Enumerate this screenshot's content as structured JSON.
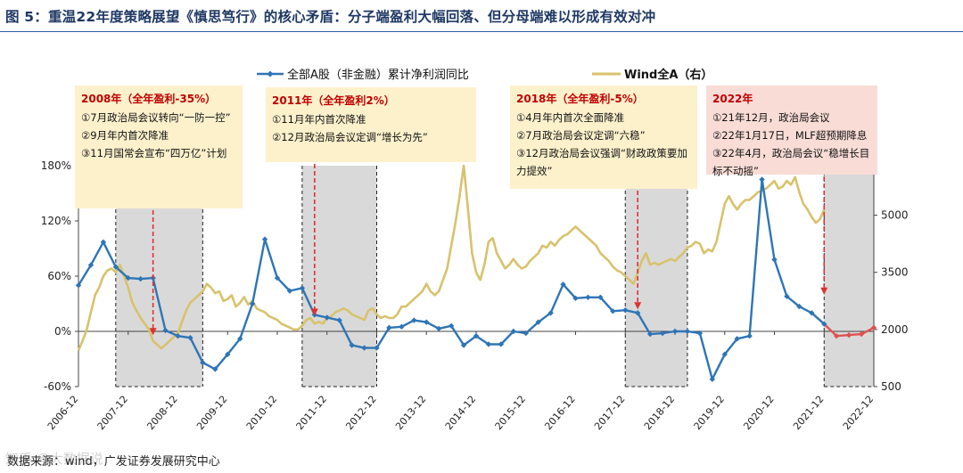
{
  "title": "图 5：重温22年度策略展望《慎思笃行》的核心矛盾：分子端盈利大幅回落、但分母端难以形成有效对冲",
  "source": "数据来源：wind，广发证券发展研究中心",
  "watermark": "知乎 @大数据说",
  "chart_data": {
    "type": "line",
    "legend_position": "top",
    "grid": false,
    "x_ticks": [
      "2006-12",
      "2007-12",
      "2008-12",
      "2009-12",
      "2010-12",
      "2011-12",
      "2012-12",
      "2013-12",
      "2014-12",
      "2015-12",
      "2016-12",
      "2017-12",
      "2018-12",
      "2019-12",
      "2020-12",
      "2021-12",
      "2022-12"
    ],
    "y_left": {
      "ticks": [
        "-60%",
        "0%",
        "60%",
        "120%",
        "180%"
      ],
      "range": [
        -60,
        180
      ]
    },
    "y_right": {
      "ticks": [
        "500",
        "2000",
        "3500",
        "5000"
      ],
      "range": [
        500,
        6300
      ]
    },
    "series": [
      {
        "name": "全部A股（非金融）累计净利润同比",
        "axis": "left",
        "color": "#2e75b6",
        "color_latest": "#e05050",
        "marker": "diamond",
        "points": [
          [
            "2006-12",
            50
          ],
          [
            "2007-03",
            72
          ],
          [
            "2007-06",
            97
          ],
          [
            "2007-09",
            70
          ],
          [
            "2007-12",
            58
          ],
          [
            "2008-03",
            57
          ],
          [
            "2008-06",
            58
          ],
          [
            "2008-09",
            1
          ],
          [
            "2008-12",
            -5
          ],
          [
            "2009-03",
            -7
          ],
          [
            "2009-06",
            -34
          ],
          [
            "2009-09",
            -41
          ],
          [
            "2009-12",
            -25
          ],
          [
            "2010-03",
            -8
          ],
          [
            "2010-06",
            30
          ],
          [
            "2010-09",
            100
          ],
          [
            "2010-12",
            58
          ],
          [
            "2011-03",
            44
          ],
          [
            "2011-06",
            47
          ],
          [
            "2011-09",
            18
          ],
          [
            "2011-12",
            15
          ],
          [
            "2012-03",
            12
          ],
          [
            "2012-06",
            -15
          ],
          [
            "2012-09",
            -18
          ],
          [
            "2012-12",
            -18
          ],
          [
            "2013-03",
            4
          ],
          [
            "2013-06",
            5
          ],
          [
            "2013-09",
            12
          ],
          [
            "2013-12",
            10
          ],
          [
            "2014-03",
            3
          ],
          [
            "2014-06",
            6
          ],
          [
            "2014-09",
            -15
          ],
          [
            "2014-12",
            -5
          ],
          [
            "2015-03",
            -14
          ],
          [
            "2015-06",
            -14
          ],
          [
            "2015-09",
            0
          ],
          [
            "2015-12",
            -2
          ],
          [
            "2016-03",
            10
          ],
          [
            "2016-06",
            20
          ],
          [
            "2016-09",
            51
          ],
          [
            "2016-12",
            36
          ],
          [
            "2017-03",
            37
          ],
          [
            "2017-06",
            37
          ],
          [
            "2017-09",
            22
          ],
          [
            "2017-12",
            23
          ],
          [
            "2018-03",
            20
          ],
          [
            "2018-06",
            -3
          ],
          [
            "2018-09",
            -2
          ],
          [
            "2018-12",
            0
          ],
          [
            "2019-03",
            0
          ],
          [
            "2019-06",
            -2
          ],
          [
            "2019-09",
            -52
          ],
          [
            "2019-12",
            -25
          ],
          [
            "2020-03",
            -8
          ],
          [
            "2020-06",
            -5
          ],
          [
            "2020-09",
            165
          ],
          [
            "2020-12",
            78
          ],
          [
            "2021-03",
            38
          ],
          [
            "2021-06",
            27
          ],
          [
            "2021-09",
            20
          ],
          [
            "2021-12",
            8
          ],
          [
            "2022-03",
            -5
          ],
          [
            "2022-06",
            -4
          ],
          [
            "2022-09",
            -3
          ],
          [
            "2022-12",
            4
          ]
        ]
      },
      {
        "name": "Wind全A（右）",
        "axis": "right",
        "color": "#d8c26c",
        "points": [
          [
            "2006-12",
            1450
          ],
          [
            "2007-01",
            1700
          ],
          [
            "2007-02",
            2000
          ],
          [
            "2007-03",
            2450
          ],
          [
            "2007-04",
            2900
          ],
          [
            "2007-05",
            3100
          ],
          [
            "2007-06",
            3400
          ],
          [
            "2007-07",
            3550
          ],
          [
            "2007-08",
            3600
          ],
          [
            "2007-09",
            3500
          ],
          [
            "2007-10",
            3700
          ],
          [
            "2007-11",
            3400
          ],
          [
            "2007-12",
            3100
          ],
          [
            "2008-01",
            2700
          ],
          [
            "2008-02",
            2500
          ],
          [
            "2008-03",
            2300
          ],
          [
            "2008-04",
            2150
          ],
          [
            "2008-05",
            2000
          ],
          [
            "2008-06",
            1700
          ],
          [
            "2008-07",
            1600
          ],
          [
            "2008-08",
            1500
          ],
          [
            "2008-09",
            1600
          ],
          [
            "2008-10",
            1700
          ],
          [
            "2008-11",
            1800
          ],
          [
            "2008-12",
            1900
          ],
          [
            "2009-01",
            2200
          ],
          [
            "2009-02",
            2500
          ],
          [
            "2009-03",
            2700
          ],
          [
            "2009-04",
            2800
          ],
          [
            "2009-05",
            2900
          ],
          [
            "2009-06",
            3000
          ],
          [
            "2009-07",
            3200
          ],
          [
            "2009-08",
            3100
          ],
          [
            "2009-09",
            2950
          ],
          [
            "2009-10",
            3000
          ],
          [
            "2009-11",
            2750
          ],
          [
            "2009-12",
            2800
          ],
          [
            "2010-01",
            2900
          ],
          [
            "2010-02",
            2600
          ],
          [
            "2010-03",
            2700
          ],
          [
            "2010-04",
            2850
          ],
          [
            "2010-05",
            2650
          ],
          [
            "2010-06",
            2750
          ],
          [
            "2010-07",
            2550
          ],
          [
            "2010-08",
            2500
          ],
          [
            "2010-09",
            2450
          ],
          [
            "2010-10",
            2350
          ],
          [
            "2010-11",
            2300
          ],
          [
            "2010-12",
            2250
          ],
          [
            "2011-01",
            2150
          ],
          [
            "2011-02",
            2100
          ],
          [
            "2011-03",
            2050
          ],
          [
            "2011-04",
            2000
          ],
          [
            "2011-05",
            2000
          ],
          [
            "2011-06",
            2100
          ],
          [
            "2011-07",
            2250
          ],
          [
            "2011-08",
            2300
          ],
          [
            "2011-09",
            2150
          ],
          [
            "2011-10",
            2200
          ],
          [
            "2011-11",
            2150
          ],
          [
            "2011-12",
            2300
          ],
          [
            "2012-01",
            2350
          ],
          [
            "2012-02",
            2450
          ],
          [
            "2012-03",
            2500
          ],
          [
            "2012-04",
            2550
          ],
          [
            "2012-05",
            2500
          ],
          [
            "2012-06",
            2400
          ],
          [
            "2012-07",
            2350
          ],
          [
            "2012-08",
            2300
          ],
          [
            "2012-09",
            2250
          ],
          [
            "2012-10",
            2500
          ],
          [
            "2012-11",
            2550
          ],
          [
            "2012-12",
            2400
          ],
          [
            "2013-01",
            2300
          ],
          [
            "2013-02",
            2350
          ],
          [
            "2013-03",
            2300
          ],
          [
            "2013-04",
            2300
          ],
          [
            "2013-05",
            2400
          ],
          [
            "2013-06",
            2600
          ],
          [
            "2013-07",
            2600
          ],
          [
            "2013-08",
            2700
          ],
          [
            "2013-09",
            2800
          ],
          [
            "2013-10",
            2900
          ],
          [
            "2013-11",
            3000
          ],
          [
            "2013-12",
            3200
          ],
          [
            "2014-01",
            3000
          ],
          [
            "2014-02",
            2900
          ],
          [
            "2014-03",
            3000
          ],
          [
            "2014-04",
            3300
          ],
          [
            "2014-05",
            3600
          ],
          [
            "2014-06",
            4200
          ],
          [
            "2014-07",
            4800
          ],
          [
            "2014-08",
            5500
          ],
          [
            "2014-09",
            6300
          ],
          [
            "2014-10",
            5200
          ],
          [
            "2014-11",
            4000
          ],
          [
            "2014-12",
            3500
          ],
          [
            "2015-01",
            3300
          ],
          [
            "2015-02",
            3700
          ],
          [
            "2015-03",
            4300
          ],
          [
            "2015-04",
            4400
          ],
          [
            "2015-05",
            4000
          ],
          [
            "2015-06",
            3800
          ],
          [
            "2015-07",
            3600
          ],
          [
            "2015-08",
            3700
          ],
          [
            "2015-09",
            3850
          ],
          [
            "2015-10",
            3700
          ],
          [
            "2015-11",
            3600
          ],
          [
            "2015-12",
            3650
          ],
          [
            "2016-01",
            3800
          ],
          [
            "2016-02",
            3900
          ],
          [
            "2016-03",
            4000
          ],
          [
            "2016-04",
            4200
          ],
          [
            "2016-05",
            4150
          ],
          [
            "2016-06",
            4300
          ],
          [
            "2016-07",
            4200
          ],
          [
            "2016-08",
            4350
          ],
          [
            "2016-09",
            4450
          ],
          [
            "2016-10",
            4500
          ],
          [
            "2016-11",
            4600
          ],
          [
            "2016-12",
            4700
          ],
          [
            "2017-01",
            4600
          ],
          [
            "2017-02",
            4500
          ],
          [
            "2017-03",
            4400
          ],
          [
            "2017-04",
            4300
          ],
          [
            "2017-05",
            4200
          ],
          [
            "2017-06",
            4000
          ],
          [
            "2017-07",
            3900
          ],
          [
            "2017-08",
            3800
          ],
          [
            "2017-09",
            3650
          ],
          [
            "2017-10",
            3550
          ],
          [
            "2017-11",
            3500
          ],
          [
            "2017-12",
            3400
          ],
          [
            "2018-01",
            3300
          ],
          [
            "2018-02",
            3200
          ],
          [
            "2018-03",
            3500
          ],
          [
            "2018-04",
            3800
          ],
          [
            "2018-05",
            4000
          ],
          [
            "2018-06",
            3700
          ],
          [
            "2018-07",
            3750
          ],
          [
            "2018-08",
            3700
          ],
          [
            "2018-09",
            3750
          ],
          [
            "2018-10",
            3800
          ],
          [
            "2018-11",
            3850
          ],
          [
            "2018-12",
            3800
          ],
          [
            "2019-01",
            3900
          ],
          [
            "2019-02",
            4000
          ],
          [
            "2019-03",
            4150
          ],
          [
            "2019-04",
            4200
          ],
          [
            "2019-05",
            4300
          ],
          [
            "2019-06",
            4250
          ],
          [
            "2019-07",
            4000
          ],
          [
            "2019-08",
            4100
          ],
          [
            "2019-09",
            4050
          ],
          [
            "2019-10",
            4300
          ],
          [
            "2019-11",
            4800
          ],
          [
            "2019-12",
            5300
          ],
          [
            "2020-01",
            5500
          ],
          [
            "2020-02",
            5300
          ],
          [
            "2020-03",
            5150
          ],
          [
            "2020-04",
            5300
          ],
          [
            "2020-05",
            5400
          ],
          [
            "2020-06",
            5400
          ],
          [
            "2020-07",
            5500
          ],
          [
            "2020-08",
            5600
          ],
          [
            "2020-09",
            5650
          ],
          [
            "2020-10",
            5700
          ],
          [
            "2020-11",
            5800
          ],
          [
            "2020-12",
            5900
          ],
          [
            "2021-01",
            5700
          ],
          [
            "2021-02",
            5750
          ],
          [
            "2021-03",
            5900
          ],
          [
            "2021-04",
            5800
          ],
          [
            "2021-05",
            6000
          ],
          [
            "2021-06",
            5600
          ],
          [
            "2021-07",
            5300
          ],
          [
            "2021-08",
            5150
          ],
          [
            "2021-09",
            4950
          ],
          [
            "2021-10",
            4800
          ],
          [
            "2021-11",
            4900
          ],
          [
            "2021-12",
            5150
          ]
        ]
      }
    ],
    "shaded_periods": [
      {
        "start": "2007-09",
        "end": "2009-06"
      },
      {
        "start": "2011-06",
        "end": "2012-12"
      },
      {
        "start": "2017-12",
        "end": "2019-03"
      },
      {
        "start": "2021-12",
        "end": "2022-12"
      }
    ],
    "markers": [
      {
        "x": "2008-06",
        "y": -6
      },
      {
        "x": "2011-09",
        "y": 15
      },
      {
        "x": "2018-03",
        "y": 22
      },
      {
        "x": "2021-12",
        "y": 38
      }
    ],
    "annotations": [
      {
        "id": "a2008",
        "heading": "2008年（全年盈利-35%）",
        "lines": [
          "①7月政治局会议转向“一防一控”",
          "②9月年内首次降准",
          "③11月国常会宣布“四万亿”计划"
        ]
      },
      {
        "id": "a2011",
        "heading": "2011年（全年盈利2%）",
        "lines": [
          "①11月年内首次降准",
          "②12月政治局会议定调“增长为先”"
        ]
      },
      {
        "id": "a2018",
        "heading": "2018年（全年盈利-5%）",
        "lines": [
          "①4月年内首次全面降准",
          "②7月政治局会议定调“六稳”",
          "③12月政治局会议强调“财政政策要加力提效”"
        ]
      },
      {
        "id": "a2022",
        "heading": "2022年",
        "lines": [
          "①21年12月，政治局会议",
          "②22年1月17日，MLF超预期降息",
          "③22年4月，政治局会议“稳增长目标不动摇”"
        ]
      }
    ]
  },
  "colors": {
    "title": "#1f3864",
    "annotation_heading": "#c00000",
    "annotation_bg": "#fdf1cc",
    "annotation_bg_latest": "#f9dcd6",
    "shade": "#d9d9d9",
    "arrow": "#e03030"
  }
}
